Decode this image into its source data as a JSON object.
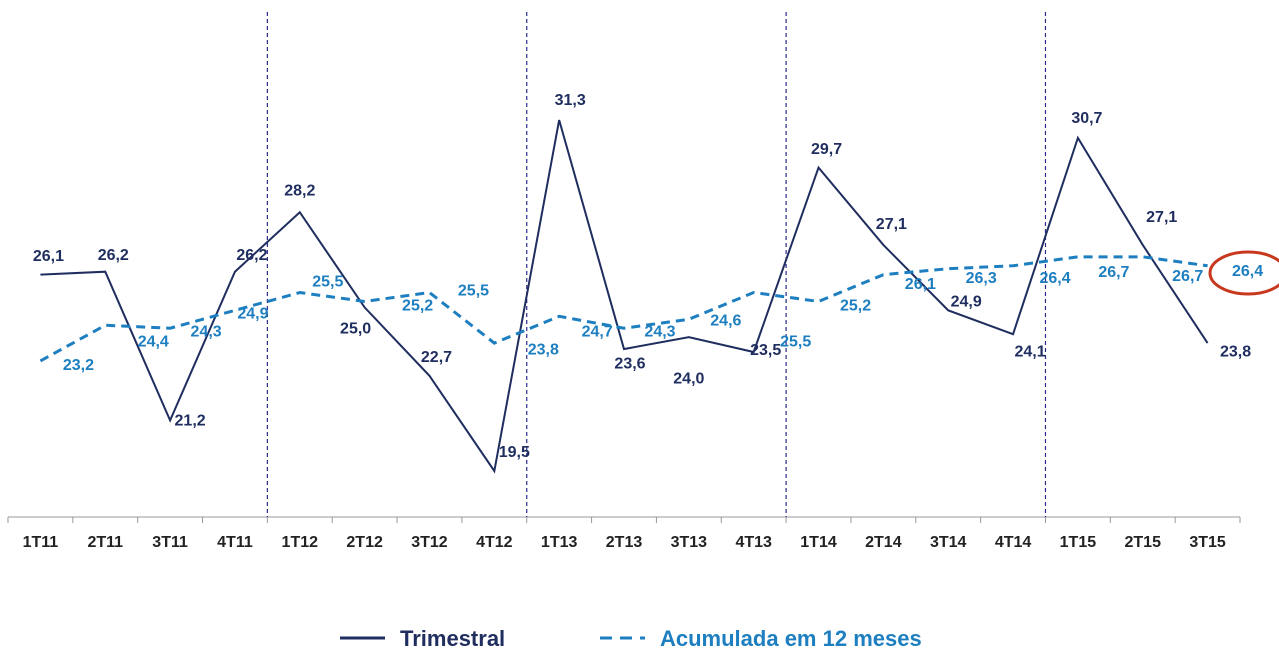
{
  "chart_data": {
    "type": "line",
    "categories": [
      "1T11",
      "2T11",
      "3T11",
      "4T11",
      "1T12",
      "2T12",
      "3T12",
      "4T12",
      "1T13",
      "2T13",
      "3T13",
      "4T13",
      "1T14",
      "2T14",
      "3T14",
      "4T14",
      "1T15",
      "2T15",
      "3T15"
    ],
    "series": [
      {
        "name": "Trimestral",
        "color": "#1f2d5f",
        "style": "solid",
        "values": [
          26.1,
          26.2,
          21.2,
          26.2,
          28.2,
          25.0,
          22.7,
          19.5,
          31.3,
          23.6,
          24.0,
          23.5,
          29.7,
          27.1,
          24.9,
          24.1,
          30.7,
          27.1,
          23.8
        ],
        "value_labels": [
          "26,1",
          "26,2",
          "21,2",
          "26,2",
          "28,2",
          "25,0",
          "22,7",
          "19,5",
          "31,3",
          "23,6",
          "24,0",
          "23,5",
          "29,7",
          "27,1",
          "24,9",
          "24,1",
          "30,7",
          "27,1",
          "23,8"
        ]
      },
      {
        "name": "Acumulada em 12 meses",
        "color": "#1e7fc0",
        "style": "dashed",
        "values": [
          23.2,
          24.4,
          24.3,
          24.9,
          25.5,
          25.2,
          25.5,
          23.8,
          24.7,
          24.3,
          24.6,
          25.5,
          25.2,
          26.1,
          26.3,
          26.4,
          26.7,
          26.7,
          26.4
        ],
        "value_labels": [
          "23,2",
          "24,4",
          "24,3",
          "24,9",
          "25,5",
          "25,2",
          "25,5",
          "23,8",
          "24,7",
          "24,3",
          "24,6",
          "25,5",
          "25,2",
          "26,1",
          "26,3",
          "26,4",
          "26,7",
          "26,7",
          "26,4"
        ]
      }
    ],
    "legend": "bottom"
  }
}
